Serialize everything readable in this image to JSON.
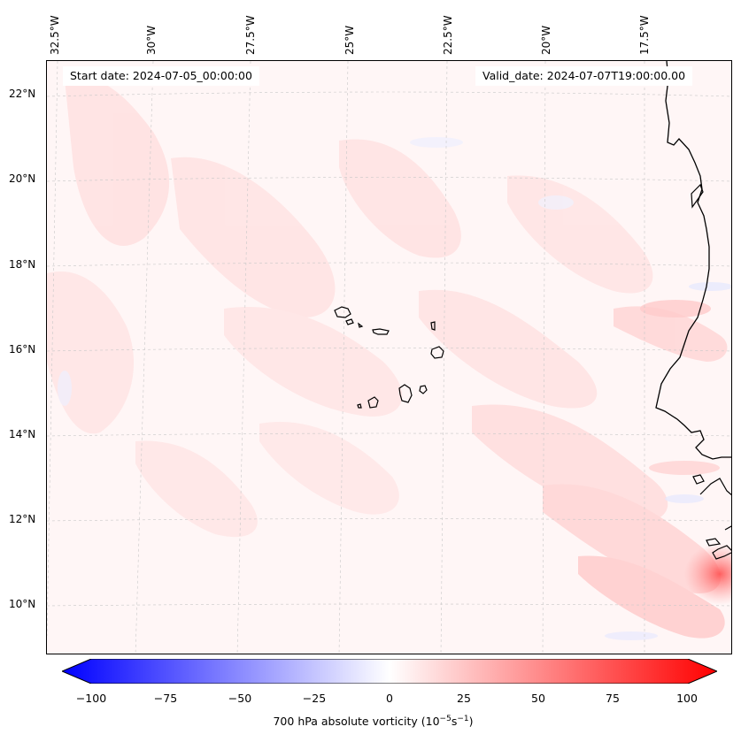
{
  "map": {
    "start_date": "Start date: 2024-07-05_00:00:00",
    "valid_date": "Valid_date: 2024-07-07T19:00:00.00",
    "lon_labels": [
      "32.5°W",
      "30°W",
      "27.5°W",
      "25°W",
      "22.5°W",
      "20°W",
      "17.5°W"
    ],
    "lat_labels": [
      "22°N",
      "20°N",
      "18°N",
      "16°N",
      "14°N",
      "12°N",
      "10°N"
    ],
    "background_color": "#fff6f6",
    "coast_color": "#000000"
  },
  "colorbar": {
    "ticks": [
      "−100",
      "−75",
      "−50",
      "−25",
      "0",
      "25",
      "50",
      "75",
      "100"
    ],
    "label_prefix": "700 hPa absolute vorticity (",
    "label_units": "10",
    "label_exp1": "−5",
    "label_mid": "s",
    "label_exp2": "−1",
    "label_suffix": ")",
    "min_color": "#0000ff",
    "mid_color": "#ffffff",
    "max_color": "#ff0000",
    "range": [
      -100,
      100
    ]
  }
}
